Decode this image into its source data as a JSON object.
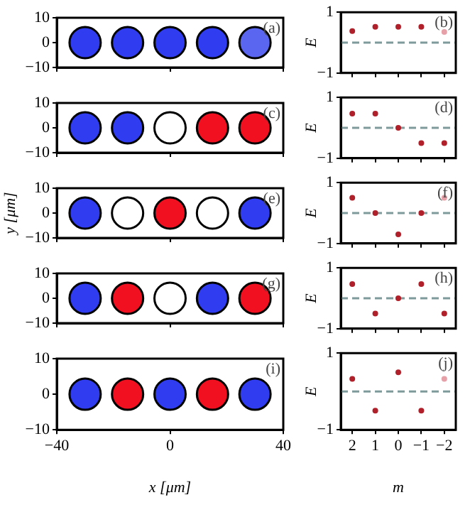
{
  "chart_data": [
    {
      "type": "scatter",
      "x": [
        -30,
        -15,
        0,
        15,
        30
      ],
      "values": [
        0,
        0,
        0,
        0,
        0
      ],
      "colors": [
        "#2f3cf0",
        "#2f3cf0",
        "#2f3cf0",
        "#2f3cf0",
        "#5a66f0"
      ],
      "marker": "circle",
      "xlim": [
        -40,
        40
      ],
      "xticks": [
        -40,
        0,
        40
      ],
      "ylim": [
        -10,
        10
      ],
      "yticks": [
        -10,
        0,
        10
      ],
      "tick_labels": "y",
      "annotations": [
        "(a)"
      ]
    },
    {
      "type": "scatter",
      "x": [
        2,
        1,
        0,
        -1,
        -2
      ],
      "values": [
        0.38,
        0.52,
        0.52,
        0.52,
        0.35
      ],
      "colors": [
        "#b0202a",
        "#b0202a",
        "#b0202a",
        "#b0202a",
        "#e6a0a8"
      ],
      "marker": "circle",
      "xlim": [
        2.5,
        -2.5
      ],
      "xticks": [
        2,
        1,
        0,
        -1,
        -2
      ],
      "ylim": [
        -1,
        1
      ],
      "yticks": [
        -1,
        1
      ],
      "ylabel": "E",
      "ref_lines": [
        {
          "axis": "y",
          "value": 0,
          "color": "#7f9a9a",
          "line_style": "dashed"
        }
      ],
      "tick_labels": "y",
      "annotations": [
        "(b)"
      ]
    },
    {
      "type": "scatter",
      "x": [
        -30,
        -15,
        0,
        15,
        30
      ],
      "values": [
        0,
        0,
        0,
        0,
        0
      ],
      "colors": [
        "#2f3cf0",
        "#2f3cf0",
        "#ffffff",
        "#f01020",
        "#f01020"
      ],
      "marker": "circle",
      "xlim": [
        -40,
        40
      ],
      "xticks": [
        -40,
        0,
        40
      ],
      "ylim": [
        -10,
        10
      ],
      "yticks": [
        -10,
        0,
        10
      ],
      "tick_labels": "y",
      "annotations": [
        "(c)"
      ]
    },
    {
      "type": "scatter",
      "x": [
        2,
        1,
        0,
        -1,
        -2
      ],
      "values": [
        0.47,
        0.47,
        0,
        -0.5,
        -0.5
      ],
      "colors": [
        "#b0202a",
        "#b0202a",
        "#b0202a",
        "#b0202a",
        "#b0202a"
      ],
      "marker": "circle",
      "xlim": [
        2.5,
        -2.5
      ],
      "xticks": [
        2,
        1,
        0,
        -1,
        -2
      ],
      "ylim": [
        -1,
        1
      ],
      "yticks": [
        -1,
        1
      ],
      "ylabel": "E",
      "ref_lines": [
        {
          "axis": "y",
          "value": 0,
          "color": "#7f9a9a",
          "line_style": "dashed"
        }
      ],
      "tick_labels": "y",
      "annotations": [
        "(d)"
      ]
    },
    {
      "type": "scatter",
      "x": [
        -30,
        -15,
        0,
        15,
        30
      ],
      "values": [
        0,
        0,
        0,
        0,
        0
      ],
      "colors": [
        "#2f3cf0",
        "#ffffff",
        "#f01020",
        "#ffffff",
        "#2f3cf0"
      ],
      "marker": "circle",
      "xlim": [
        -40,
        40
      ],
      "xticks": [
        -40,
        0,
        40
      ],
      "ylim": [
        -10,
        10
      ],
      "yticks": [
        -10,
        0,
        10
      ],
      "ylabel": "y [μm]",
      "tick_labels": "y",
      "annotations": [
        "(e)"
      ]
    },
    {
      "type": "scatter",
      "x": [
        2,
        1,
        0,
        -1,
        -2
      ],
      "values": [
        0.5,
        0,
        -0.7,
        0,
        0.5
      ],
      "colors": [
        "#b0202a",
        "#b0202a",
        "#b0202a",
        "#b0202a",
        "#e6a0a8"
      ],
      "marker": "circle",
      "xlim": [
        2.5,
        -2.5
      ],
      "xticks": [
        2,
        1,
        0,
        -1,
        -2
      ],
      "ylim": [
        -1,
        1
      ],
      "yticks": [
        -1,
        1
      ],
      "ylabel": "E",
      "ref_lines": [
        {
          "axis": "y",
          "value": 0,
          "color": "#7f9a9a",
          "line_style": "dashed"
        }
      ],
      "tick_labels": "y",
      "annotations": [
        "(f)"
      ]
    },
    {
      "type": "scatter",
      "x": [
        -30,
        -15,
        0,
        15,
        30
      ],
      "values": [
        0,
        0,
        0,
        0,
        0
      ],
      "colors": [
        "#2f3cf0",
        "#f01020",
        "#ffffff",
        "#2f3cf0",
        "#f01020"
      ],
      "marker": "circle",
      "xlim": [
        -40,
        40
      ],
      "xticks": [
        -40,
        0,
        40
      ],
      "ylim": [
        -10,
        10
      ],
      "yticks": [
        -10,
        0,
        10
      ],
      "tick_labels": "y",
      "annotations": [
        "(g)"
      ]
    },
    {
      "type": "scatter",
      "x": [
        2,
        1,
        0,
        -1,
        -2
      ],
      "values": [
        0.47,
        -0.5,
        0,
        0.47,
        -0.5
      ],
      "colors": [
        "#b0202a",
        "#b0202a",
        "#b0202a",
        "#b0202a",
        "#b0202a"
      ],
      "marker": "circle",
      "xlim": [
        2.5,
        -2.5
      ],
      "xticks": [
        2,
        1,
        0,
        -1,
        -2
      ],
      "ylim": [
        -1,
        1
      ],
      "yticks": [
        -1,
        1
      ],
      "ylabel": "E",
      "ref_lines": [
        {
          "axis": "y",
          "value": 0,
          "color": "#7f9a9a",
          "line_style": "dashed"
        }
      ],
      "tick_labels": "y",
      "annotations": [
        "(h)"
      ]
    },
    {
      "type": "scatter",
      "x": [
        -30,
        -15,
        0,
        15,
        30
      ],
      "values": [
        0,
        0,
        0,
        0,
        0
      ],
      "colors": [
        "#2f3cf0",
        "#f01020",
        "#2f3cf0",
        "#f01020",
        "#2f3cf0"
      ],
      "marker": "circle",
      "xlim": [
        -40,
        40
      ],
      "xticks": [
        -40,
        0,
        40
      ],
      "ylim": [
        -10,
        10
      ],
      "yticks": [
        -10,
        0,
        10
      ],
      "xlabel": "x [μm]",
      "annotations": [
        "(i)"
      ]
    },
    {
      "type": "scatter",
      "x": [
        2,
        1,
        0,
        -1,
        -2
      ],
      "values": [
        0.33,
        -0.5,
        0.5,
        -0.5,
        0.33
      ],
      "colors": [
        "#b0202a",
        "#b0202a",
        "#b0202a",
        "#b0202a",
        "#e6a0a8"
      ],
      "marker": "circle",
      "xlim": [
        2.5,
        -2.5
      ],
      "xticks": [
        2,
        1,
        0,
        -1,
        -2
      ],
      "ylim": [
        -1,
        1
      ],
      "yticks": [
        -1,
        1
      ],
      "xlabel": "m",
      "ylabel": "E",
      "ref_lines": [
        {
          "axis": "y",
          "value": 0,
          "color": "#7f9a9a",
          "line_style": "dashed"
        }
      ],
      "annotations": [
        "(j)"
      ]
    }
  ]
}
